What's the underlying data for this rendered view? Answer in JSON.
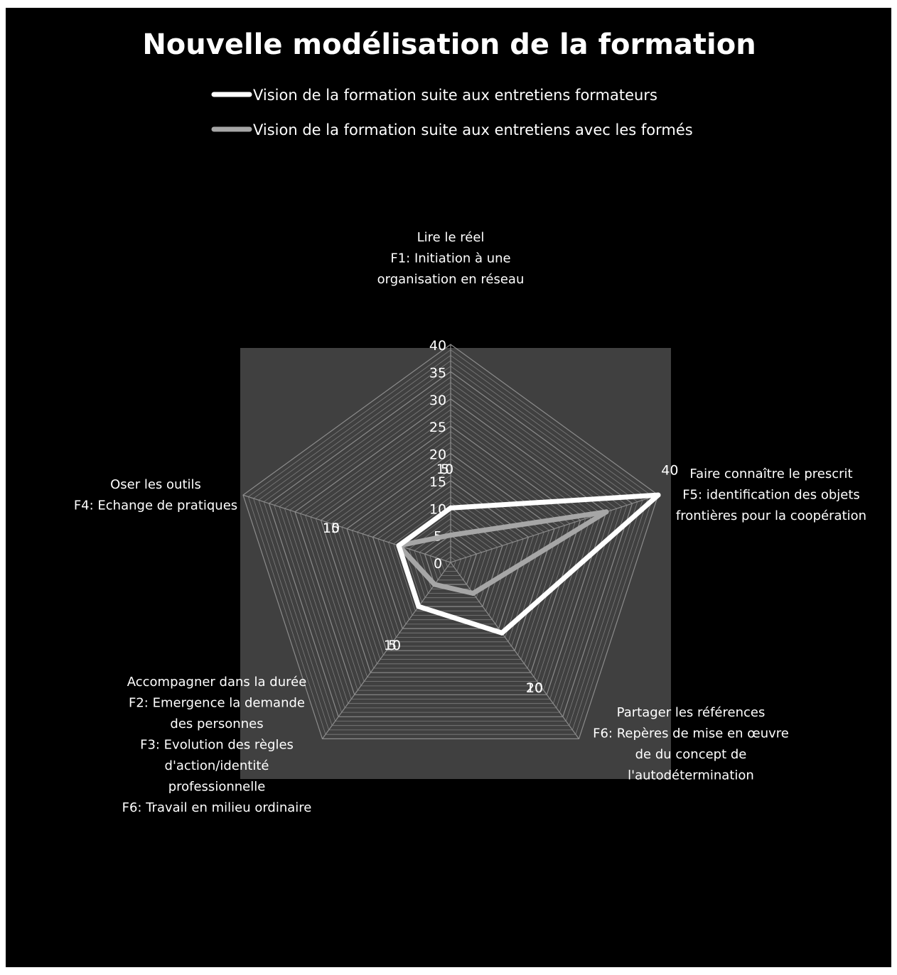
{
  "chart_data": {
    "type": "radar",
    "title": "Nouvelle modélisation de la formation",
    "legend_position": "top",
    "colors": {
      "background": "#000000",
      "plot_area": "#404040",
      "grid": "#8c8c8c",
      "text": "#ffffff"
    },
    "categories": [
      {
        "label_lines": [
          "Lire le réel",
          "F1: Initiation à une",
          "organisation en réseau"
        ]
      },
      {
        "label_lines": [
          "Faire connaître le prescrit",
          "F5: identification des objets",
          "frontières pour la coopération"
        ]
      },
      {
        "label_lines": [
          "Partager les références",
          "F6: Repères de mise en œuvre",
          "de du concept de",
          "l'autodétermination"
        ]
      },
      {
        "label_lines": [
          "Accompagner dans la durée",
          "F2: Emergence la demande",
          "des personnes",
          "F3: Evolution des règles",
          "d'action/identité",
          "professionnelle",
          "F6: Travail en milieu ordinaire"
        ]
      },
      {
        "label_lines": [
          "Oser les outils",
          "F4: Echange de pratiques"
        ]
      }
    ],
    "series": [
      {
        "name": "Vision de la formation suite aux entretiens formateurs",
        "color": "#ffffff",
        "values": [
          10,
          40,
          16,
          10,
          10
        ]
      },
      {
        "name": "Vision de la formation suite aux entretiens avec les formés",
        "color": "#a6a6a6",
        "values": [
          5,
          30,
          7,
          5,
          10
        ]
      }
    ],
    "axes": [
      {
        "range": [
          0,
          40
        ],
        "ticks": [
          "0",
          "5",
          "10",
          "15",
          "20",
          "25",
          "30",
          "35",
          "40"
        ]
      },
      {
        "range": [
          0,
          40
        ],
        "ticks": [
          "40"
        ]
      },
      {
        "range": [
          0,
          40
        ],
        "ticks": [
          "10",
          "20"
        ]
      },
      {
        "range": [
          0,
          40
        ],
        "ticks": [
          "5",
          "10"
        ]
      },
      {
        "range": [
          0,
          40
        ],
        "ticks": [
          "10",
          "15"
        ]
      },
      {
        "range": [
          0,
          40
        ],
        "ticks": [
          "5",
          "10"
        ]
      }
    ],
    "grid": true
  }
}
